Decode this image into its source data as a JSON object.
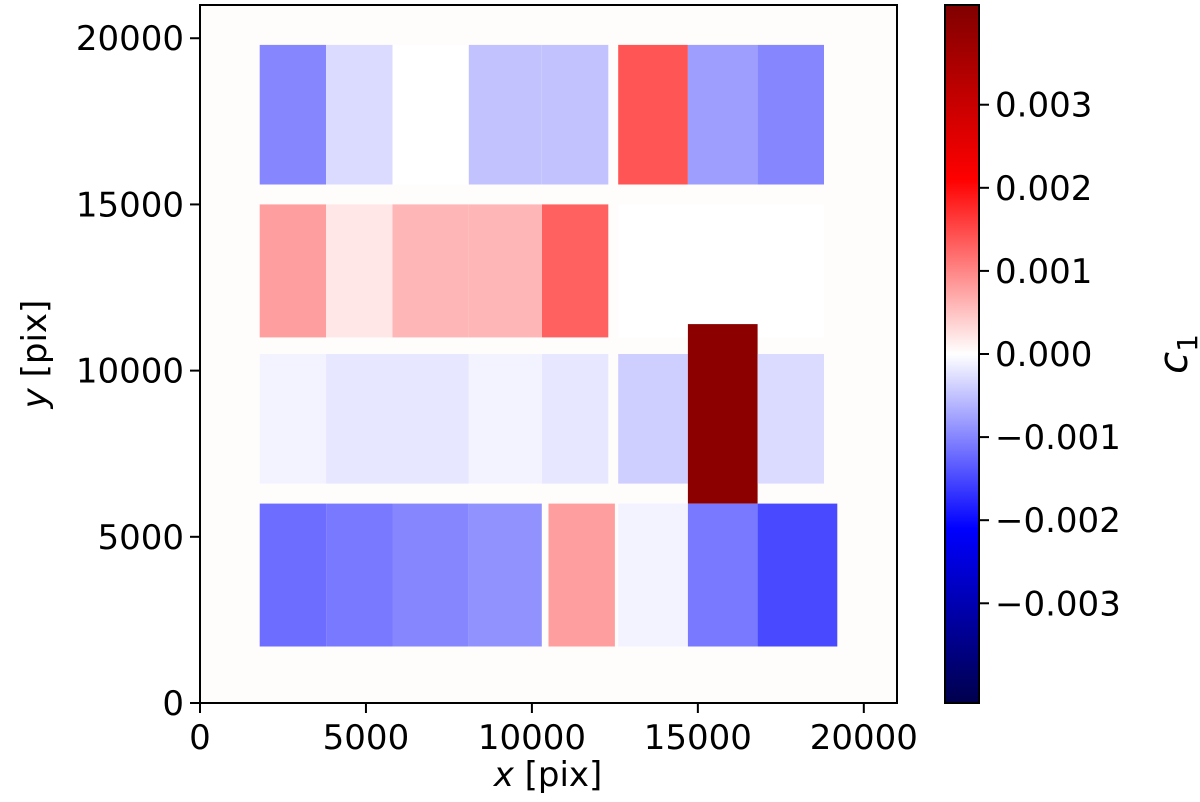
{
  "chart_data": {
    "type": "heatmap",
    "title": "",
    "xlabel_var": "x",
    "xlabel_unit": " [pix]",
    "ylabel_var": "y",
    "ylabel_unit": " [pix]",
    "xlim": [
      0,
      21000
    ],
    "ylim": [
      0,
      21000
    ],
    "x_ticks": [
      0,
      5000,
      10000,
      15000,
      20000
    ],
    "x_tick_labels": [
      "0",
      "5000",
      "10000",
      "15000",
      "20000"
    ],
    "y_ticks": [
      0,
      5000,
      10000,
      15000,
      20000
    ],
    "y_tick_labels": [
      "0",
      "5000",
      "10000",
      "15000",
      "20000"
    ],
    "colorbar": {
      "label_var": "c",
      "label_sub": "1",
      "colormap": "seismic",
      "vmin": -0.0042,
      "vmax": 0.0042,
      "ticks": [
        0.003,
        0.002,
        0.001,
        0.0,
        -0.001,
        -0.002,
        -0.003
      ],
      "tick_labels": [
        "0.003",
        "0.002",
        "0.001",
        "0.000",
        "−0.001",
        "−0.002",
        "−0.003"
      ]
    },
    "background_value": 0.0,
    "cells": [
      {
        "x0": 1800,
        "x1": 3800,
        "y0": 15600,
        "y1": 19800,
        "value": -0.001
      },
      {
        "x0": 3800,
        "x1": 5800,
        "y0": 15600,
        "y1": 19800,
        "value": -0.0003
      },
      {
        "x0": 5800,
        "x1": 8100,
        "y0": 15600,
        "y1": 19800,
        "value": 0.0
      },
      {
        "x0": 8100,
        "x1": 10300,
        "y0": 15600,
        "y1": 19800,
        "value": -0.0005
      },
      {
        "x0": 10300,
        "x1": 12300,
        "y0": 15600,
        "y1": 19800,
        "value": -0.0005
      },
      {
        "x0": 12600,
        "x1": 14700,
        "y0": 15600,
        "y1": 19800,
        "value": 0.0014
      },
      {
        "x0": 14700,
        "x1": 16800,
        "y0": 15600,
        "y1": 19800,
        "value": -0.0008
      },
      {
        "x0": 16800,
        "x1": 18800,
        "y0": 15600,
        "y1": 19800,
        "value": -0.001
      },
      {
        "x0": 1800,
        "x1": 3800,
        "y0": 11000,
        "y1": 15000,
        "value": 0.0008
      },
      {
        "x0": 3800,
        "x1": 5800,
        "y0": 11000,
        "y1": 15000,
        "value": 0.0002
      },
      {
        "x0": 5800,
        "x1": 8100,
        "y0": 11000,
        "y1": 15000,
        "value": 0.0006
      },
      {
        "x0": 8100,
        "x1": 10300,
        "y0": 11000,
        "y1": 15000,
        "value": 0.0006
      },
      {
        "x0": 10300,
        "x1": 12300,
        "y0": 11000,
        "y1": 15000,
        "value": 0.0013
      },
      {
        "x0": 12600,
        "x1": 14700,
        "y0": 11000,
        "y1": 15000,
        "value": 0.0
      },
      {
        "x0": 14700,
        "x1": 16800,
        "y0": 11000,
        "y1": 15000,
        "value": 0.0
      },
      {
        "x0": 16800,
        "x1": 18800,
        "y0": 11000,
        "y1": 15000,
        "value": 0.0
      },
      {
        "x0": 1800,
        "x1": 3800,
        "y0": 6600,
        "y1": 10500,
        "value": -0.0001
      },
      {
        "x0": 3800,
        "x1": 5800,
        "y0": 6600,
        "y1": 10500,
        "value": -0.0002
      },
      {
        "x0": 5800,
        "x1": 8100,
        "y0": 6600,
        "y1": 10500,
        "value": -0.0002
      },
      {
        "x0": 8100,
        "x1": 10300,
        "y0": 6600,
        "y1": 10500,
        "value": -0.0001
      },
      {
        "x0": 10300,
        "x1": 12300,
        "y0": 6600,
        "y1": 10500,
        "value": -0.0002
      },
      {
        "x0": 12600,
        "x1": 14700,
        "y0": 6600,
        "y1": 10500,
        "value": -0.0004
      },
      {
        "x0": 14700,
        "x1": 16800,
        "y0": 6000,
        "y1": 11400,
        "value": 0.004
      },
      {
        "x0": 16800,
        "x1": 18800,
        "y0": 6600,
        "y1": 10500,
        "value": -0.0003
      },
      {
        "x0": 1800,
        "x1": 3800,
        "y0": 1700,
        "y1": 6000,
        "value": -0.0012
      },
      {
        "x0": 3800,
        "x1": 5800,
        "y0": 1700,
        "y1": 6000,
        "value": -0.0011
      },
      {
        "x0": 5800,
        "x1": 8100,
        "y0": 1700,
        "y1": 6000,
        "value": -0.001
      },
      {
        "x0": 8100,
        "x1": 10300,
        "y0": 1700,
        "y1": 6000,
        "value": -0.0009
      },
      {
        "x0": 10500,
        "x1": 12500,
        "y0": 1700,
        "y1": 6000,
        "value": 0.0008
      },
      {
        "x0": 12600,
        "x1": 14700,
        "y0": 1700,
        "y1": 6000,
        "value": -0.0001
      },
      {
        "x0": 14700,
        "x1": 16800,
        "y0": 1700,
        "y1": 6000,
        "value": -0.0011
      },
      {
        "x0": 16800,
        "x1": 19200,
        "y0": 1700,
        "y1": 6000,
        "value": -0.0015
      }
    ]
  }
}
